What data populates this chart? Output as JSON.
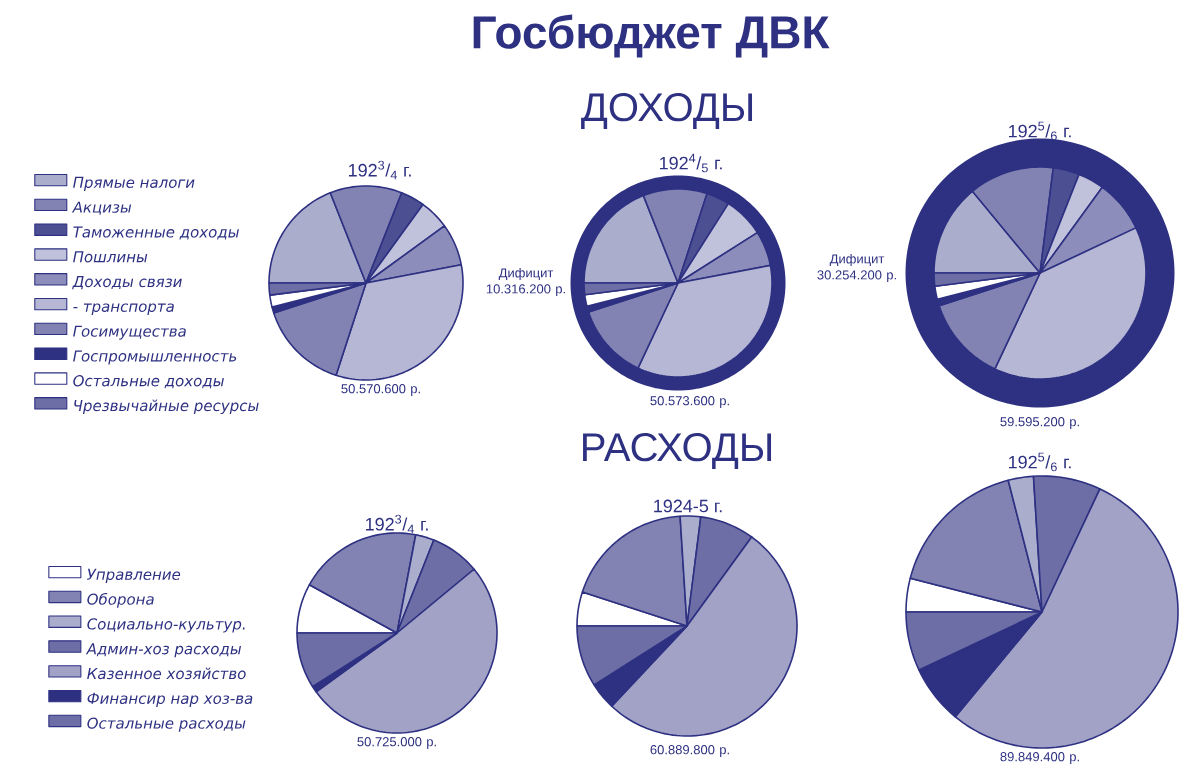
{
  "chart_data": [
    {
      "type": "other",
      "title": "Госбюджет ДВК"
    },
    {
      "type": "pie",
      "title": "ДОХОДЫ",
      "categories": [
        "Прямые налоги",
        "Акцизы",
        "Таможенные доходы",
        "Пошлины",
        "Доходы связи",
        "- транспорта",
        "Госимущества",
        "Госпромышленность",
        "Остальные доходы",
        "Чрезвычайные ресурсы"
      ],
      "colors": [
        "#abadcd",
        "#8283b3",
        "#4d4f93",
        "#c0c1da",
        "#8c8dba",
        "#b6b7d4",
        "#8283b3",
        "#2e3182",
        "#ffffff",
        "#6d6ea6"
      ],
      "series": [
        {
          "name": "192$^{3}$/$_{4}$ г.",
          "values": [
            19,
            12,
            4,
            5,
            7,
            33,
            15,
            1,
            2,
            2
          ]
        },
        {
          "name": "192$^{4}$/$_{5}$ г.",
          "values": [
            19,
            11,
            4,
            7,
            6,
            35,
            13,
            1,
            2,
            2
          ]
        },
        {
          "name": "192$^{5}$/$_{6}$ г.",
          "values": [
            14,
            13,
            4,
            4,
            8,
            39,
            13,
            1,
            2,
            2
          ]
        }
      ],
      "legend": "left",
      "annotations": [
        "50.570.600 р.",
        "50.573.600 р.",
        "59.595.200 р.",
        "Дифицит 10.316.200 р.",
        "Дифицит 30.254.200 р."
      ]
    },
    {
      "type": "pie",
      "title": "РАСХОДЫ",
      "categories": [
        "Управление",
        "Оборона",
        "Социально-культур.",
        "Админ-хоз расходы",
        "Казенное хозяйство",
        "Финансир нар хоз-ва",
        "Остальные расходы"
      ],
      "colors": [
        "#ffffff",
        "#8283b3",
        "#abadcd",
        "#6d6ea6",
        "#a1a2c6",
        "#2e3182",
        "#6d6ea6"
      ],
      "series": [
        {
          "name": "192$^{3}$/$_{4}$ г.",
          "values": [
            8,
            20,
            3,
            8,
            51,
            1,
            9
          ]
        },
        {
          "name": "1924-5 г.",
          "values": [
            5,
            19,
            3,
            8,
            52,
            4,
            9
          ]
        },
        {
          "name": "192$^{5}$/$_{6}$ г.",
          "values": [
            4,
            17,
            3,
            8,
            54,
            7,
            7
          ]
        }
      ],
      "legend": "left",
      "annotations": [
        "50.725.000 р.",
        "60.889.800 р.",
        "89.849.400 р."
      ]
    }
  ]
}
